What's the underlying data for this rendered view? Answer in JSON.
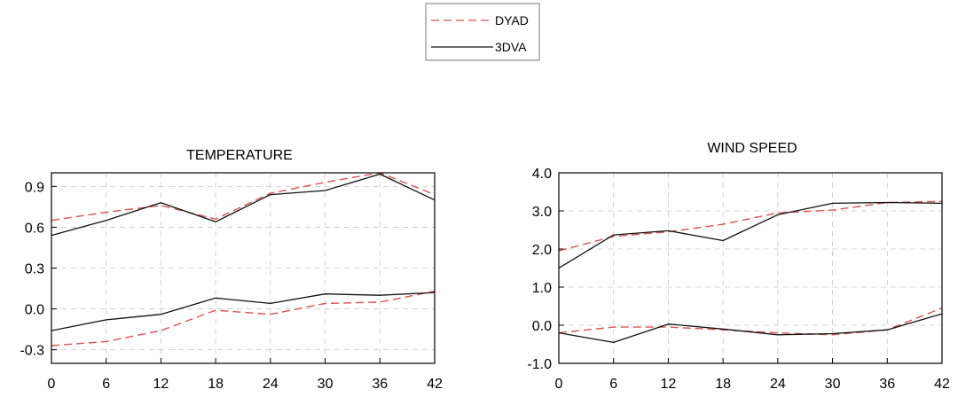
{
  "legend": {
    "entries": [
      {
        "label": "DYAD",
        "color": "#d9534f",
        "dash": true
      },
      {
        "label": "3DVA",
        "color": "#111111",
        "dash": false
      }
    ]
  },
  "chart_data": [
    {
      "type": "line",
      "title": "TEMPERATURE",
      "xlabel": "",
      "ylabel": "",
      "x": [
        0,
        6,
        12,
        18,
        24,
        30,
        36,
        42
      ],
      "xlim": [
        0,
        42
      ],
      "ylim": [
        -0.4,
        1.0
      ],
      "xticks": [
        "0",
        "6",
        "12",
        "18",
        "24",
        "30",
        "36",
        "42"
      ],
      "yticks": [
        {
          "value": -0.3,
          "label": "-0.3"
        },
        {
          "value": 0.0,
          "label": "0.0"
        },
        {
          "value": 0.3,
          "label": "0.3"
        },
        {
          "value": 0.6,
          "label": "0.6"
        },
        {
          "value": 0.9,
          "label": "0.9"
        }
      ],
      "grid": true,
      "series": [
        {
          "name": "DYAD",
          "group": "upper",
          "values": [
            0.65,
            0.71,
            0.76,
            0.66,
            0.85,
            0.93,
            1.0,
            0.84
          ]
        },
        {
          "name": "3DVA",
          "group": "upper",
          "values": [
            0.54,
            0.65,
            0.78,
            0.64,
            0.84,
            0.87,
            0.99,
            0.8
          ]
        },
        {
          "name": "DYAD",
          "group": "lower",
          "values": [
            -0.27,
            -0.24,
            -0.16,
            -0.01,
            -0.04,
            0.04,
            0.05,
            0.13
          ]
        },
        {
          "name": "3DVA",
          "group": "lower",
          "values": [
            -0.16,
            -0.08,
            -0.04,
            0.08,
            0.04,
            0.11,
            0.1,
            0.12
          ]
        }
      ]
    },
    {
      "type": "line",
      "title": "WIND SPEED",
      "xlabel": "",
      "ylabel": "",
      "x": [
        0,
        6,
        12,
        18,
        24,
        30,
        36,
        42
      ],
      "xlim": [
        0,
        42
      ],
      "ylim": [
        -1.0,
        4.0
      ],
      "xticks": [
        "0",
        "6",
        "12",
        "18",
        "24",
        "30",
        "36",
        "42"
      ],
      "yticks": [
        {
          "value": -1.0,
          "label": "-1.0"
        },
        {
          "value": 0.0,
          "label": "0.0"
        },
        {
          "value": 1.0,
          "label": "1.0"
        },
        {
          "value": 2.0,
          "label": "2.0"
        },
        {
          "value": 3.0,
          "label": "3.0"
        },
        {
          "value": 4.0,
          "label": "4.0"
        }
      ],
      "grid": true,
      "series": [
        {
          "name": "DYAD",
          "group": "upper",
          "values": [
            1.95,
            2.33,
            2.45,
            2.65,
            2.95,
            3.02,
            3.22,
            3.25
          ]
        },
        {
          "name": "3DVA",
          "group": "upper",
          "values": [
            1.5,
            2.37,
            2.48,
            2.22,
            2.9,
            3.2,
            3.22,
            3.2
          ]
        },
        {
          "name": "DYAD",
          "group": "lower",
          "values": [
            -0.2,
            -0.05,
            -0.05,
            -0.12,
            -0.2,
            -0.25,
            -0.12,
            0.45
          ]
        },
        {
          "name": "3DVA",
          "group": "lower",
          "values": [
            -0.2,
            -0.45,
            0.03,
            -0.1,
            -0.25,
            -0.22,
            -0.12,
            0.3
          ]
        }
      ]
    }
  ]
}
